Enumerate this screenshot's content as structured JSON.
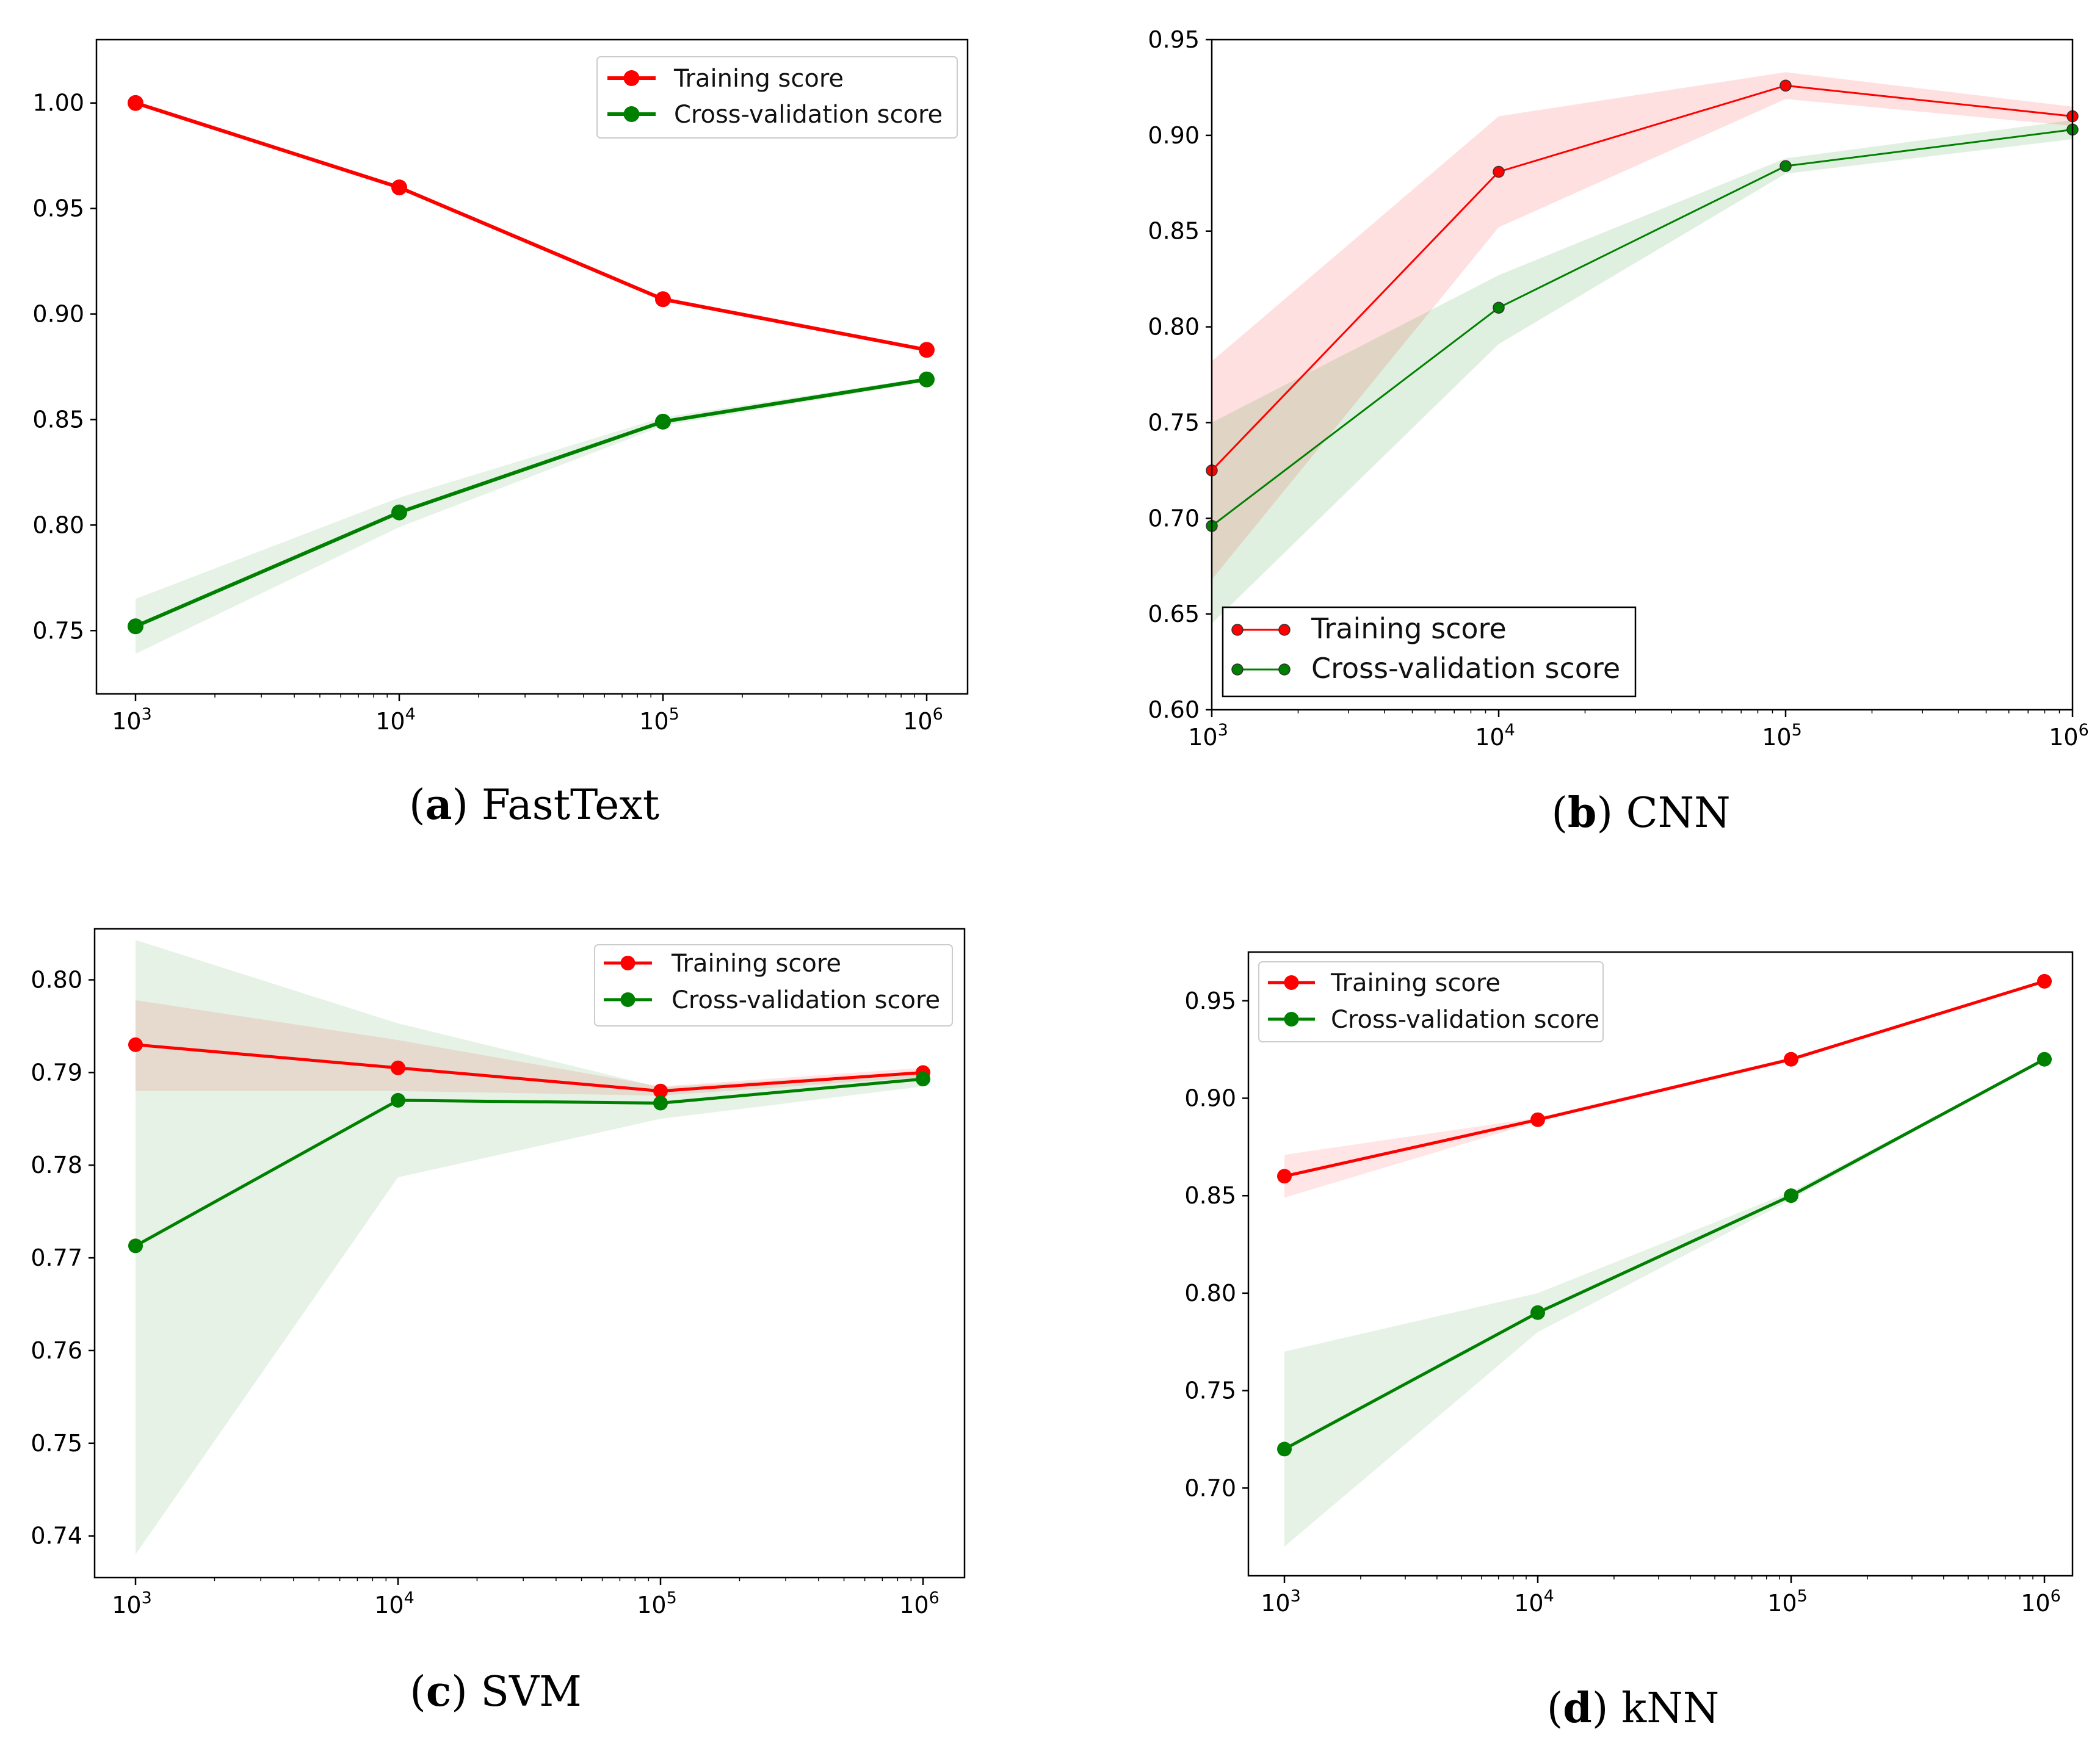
{
  "colors": {
    "training": "#ff0000",
    "cross_validation": "#008000",
    "training_band": "#ff0000",
    "cross_validation_band": "#008000"
  },
  "chart_data": [
    {
      "id": "a",
      "type": "line",
      "caption_letter": "a",
      "caption_text": "FastText",
      "x": [
        1000,
        10000,
        100000,
        1000000
      ],
      "xtick_base": "10",
      "xtick_exponents": [
        "3",
        "4",
        "5",
        "6"
      ],
      "xscale": "log",
      "ylim": [
        0.72,
        1.03
      ],
      "yticks": [
        0.75,
        0.8,
        0.85,
        0.9,
        0.95,
        1.0
      ],
      "ytick_labels": [
        "0.75",
        "0.80",
        "0.85",
        "0.90",
        "0.95",
        "1.00"
      ],
      "legend_position": "top-right",
      "series": [
        {
          "name": "Training score",
          "values": [
            1.0,
            0.96,
            0.907,
            0.883
          ],
          "band_low": [
            1.0,
            0.96,
            0.907,
            0.883
          ],
          "band_high": [
            1.0,
            0.96,
            0.907,
            0.883
          ]
        },
        {
          "name": "Cross-validation score",
          "values": [
            0.752,
            0.806,
            0.849,
            0.869
          ],
          "band_low": [
            0.739,
            0.799,
            0.847,
            0.868
          ],
          "band_high": [
            0.765,
            0.813,
            0.851,
            0.87
          ]
        }
      ]
    },
    {
      "id": "b",
      "type": "line",
      "caption_letter": "b",
      "caption_text": "CNN",
      "x": [
        1000,
        10000,
        100000,
        1000000
      ],
      "xtick_base": "10",
      "xtick_exponents": [
        "3",
        "4",
        "5",
        "6"
      ],
      "xscale": "log",
      "ylim": [
        0.6,
        0.95
      ],
      "yticks": [
        0.6,
        0.65,
        0.7,
        0.75,
        0.8,
        0.85,
        0.9,
        0.95
      ],
      "ytick_labels": [
        "0.60",
        "0.65",
        "0.70",
        "0.75",
        "0.80",
        "0.85",
        "0.90",
        "0.95"
      ],
      "legend_position": "bottom-left",
      "series": [
        {
          "name": "Training score",
          "values": [
            0.725,
            0.881,
            0.926,
            0.91
          ],
          "band_low": [
            0.668,
            0.852,
            0.919,
            0.905
          ],
          "band_high": [
            0.782,
            0.91,
            0.933,
            0.915
          ]
        },
        {
          "name": "Cross-validation score",
          "values": [
            0.696,
            0.81,
            0.884,
            0.903
          ],
          "band_low": [
            0.645,
            0.791,
            0.88,
            0.898
          ],
          "band_high": [
            0.75,
            0.827,
            0.888,
            0.908
          ]
        }
      ]
    },
    {
      "id": "c",
      "type": "line",
      "caption_letter": "c",
      "caption_text": "SVM",
      "x": [
        1000,
        10000,
        100000,
        1000000
      ],
      "xtick_base": "10",
      "xtick_exponents": [
        "3",
        "4",
        "5",
        "6"
      ],
      "xscale": "log",
      "ylim": [
        0.7355,
        0.8055
      ],
      "yticks": [
        0.74,
        0.75,
        0.76,
        0.77,
        0.78,
        0.79,
        0.8
      ],
      "ytick_labels": [
        "0.74",
        "0.75",
        "0.76",
        "0.77",
        "0.78",
        "0.79",
        "0.80"
      ],
      "legend_position": "top-right",
      "series": [
        {
          "name": "Training score",
          "values": [
            0.793,
            0.7905,
            0.788,
            0.79
          ],
          "band_low": [
            0.788,
            0.788,
            0.7875,
            0.7895
          ],
          "band_high": [
            0.7978,
            0.7935,
            0.7885,
            0.7905
          ]
        },
        {
          "name": "Cross-validation score",
          "values": [
            0.7713,
            0.787,
            0.7867,
            0.7893
          ],
          "band_low": [
            0.738,
            0.7787,
            0.785,
            0.7885
          ],
          "band_high": [
            0.8043,
            0.7953,
            0.7884,
            0.7901
          ]
        }
      ]
    },
    {
      "id": "d",
      "type": "line",
      "caption_letter": "d",
      "caption_text": "kNN",
      "x": [
        1000,
        10000,
        100000,
        1000000
      ],
      "xtick_base": "10",
      "xtick_exponents": [
        "3",
        "4",
        "5",
        "6"
      ],
      "xscale": "log",
      "ylim": [
        0.655,
        0.975
      ],
      "yticks": [
        0.7,
        0.75,
        0.8,
        0.85,
        0.9,
        0.95
      ],
      "ytick_labels": [
        "0.70",
        "0.75",
        "0.80",
        "0.85",
        "0.90",
        "0.95"
      ],
      "legend_position": "top-left",
      "series": [
        {
          "name": "Training score",
          "values": [
            0.86,
            0.889,
            0.92,
            0.96
          ],
          "band_low": [
            0.849,
            0.888,
            0.919,
            0.96
          ],
          "band_high": [
            0.871,
            0.89,
            0.921,
            0.96
          ]
        },
        {
          "name": "Cross-validation score",
          "values": [
            0.72,
            0.79,
            0.85,
            0.92
          ],
          "band_low": [
            0.67,
            0.78,
            0.848,
            0.92
          ],
          "band_high": [
            0.77,
            0.8,
            0.852,
            0.92
          ]
        }
      ]
    }
  ]
}
